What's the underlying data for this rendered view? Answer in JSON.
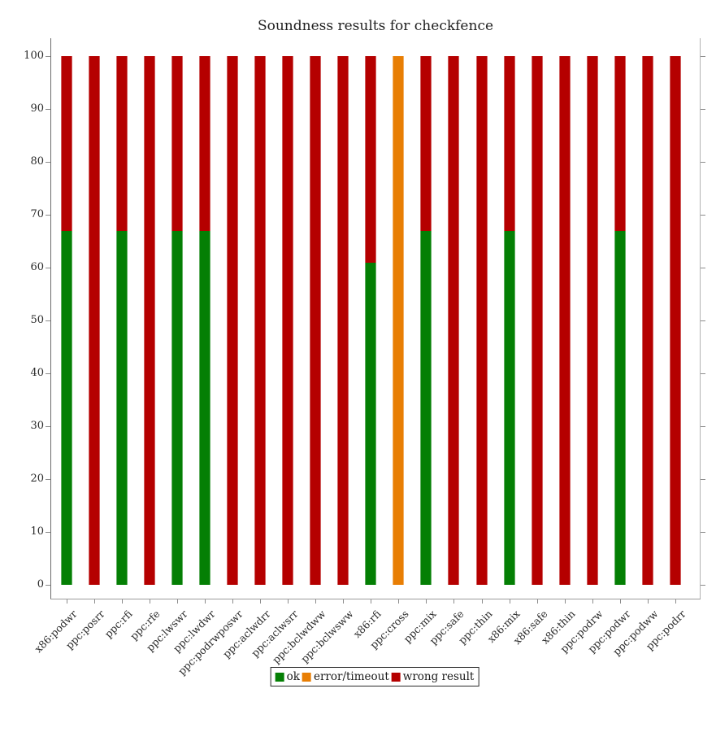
{
  "title": "Soundness results for checkfence",
  "colors": {
    "ok": "#047f04",
    "error_timeout": "#e87e04",
    "wrong_result": "#b50000",
    "axis": "#8c8c8c"
  },
  "legend": {
    "items": [
      {
        "label": "ok",
        "color_key": "ok"
      },
      {
        "label": "error/timeout",
        "color_key": "error_timeout"
      },
      {
        "label": "wrong result",
        "color_key": "wrong_result"
      }
    ],
    "position": "bottom-center"
  },
  "chart_data": {
    "type": "bar",
    "stacked": true,
    "title": "Soundness results for checkfence",
    "xlabel": "",
    "ylabel": "",
    "ylim": [
      0,
      100
    ],
    "yticks": [
      0,
      10,
      20,
      30,
      40,
      50,
      60,
      70,
      80,
      90,
      100
    ],
    "grid": false,
    "legend_position": "bottom",
    "categories": [
      "x86:podwr",
      "ppc:posrr",
      "ppc:rfi",
      "ppc:rfe",
      "ppc:lwswr",
      "ppc:lwdwr",
      "ppc:podrwposwr",
      "ppc:aclwdrr",
      "ppc:aclwsrr",
      "ppc:bclwdww",
      "ppc:bclwsww",
      "x86:rfi",
      "ppc:cross",
      "ppc:mix",
      "ppc:safe",
      "ppc:thin",
      "x86:mix",
      "x86:safe",
      "x86:thin",
      "ppc:podrw",
      "ppc:podwr",
      "ppc:podww",
      "ppc:podrr"
    ],
    "series": [
      {
        "name": "ok",
        "color_key": "ok",
        "values": [
          67,
          0,
          67,
          0,
          67,
          67,
          0,
          0,
          0,
          0,
          0,
          61,
          0,
          67,
          0,
          0,
          67,
          0,
          0,
          0,
          67,
          0,
          0
        ]
      },
      {
        "name": "error/timeout",
        "color_key": "error_timeout",
        "values": [
          0,
          0,
          0,
          0,
          0,
          0,
          0,
          0,
          0,
          0,
          0,
          0,
          100,
          0,
          0,
          0,
          0,
          0,
          0,
          0,
          0,
          0,
          0
        ]
      },
      {
        "name": "wrong result",
        "color_key": "wrong_result",
        "values": [
          33,
          100,
          33,
          100,
          33,
          33,
          100,
          100,
          100,
          100,
          100,
          39,
          0,
          33,
          100,
          100,
          33,
          100,
          100,
          100,
          33,
          100,
          100
        ]
      }
    ]
  }
}
